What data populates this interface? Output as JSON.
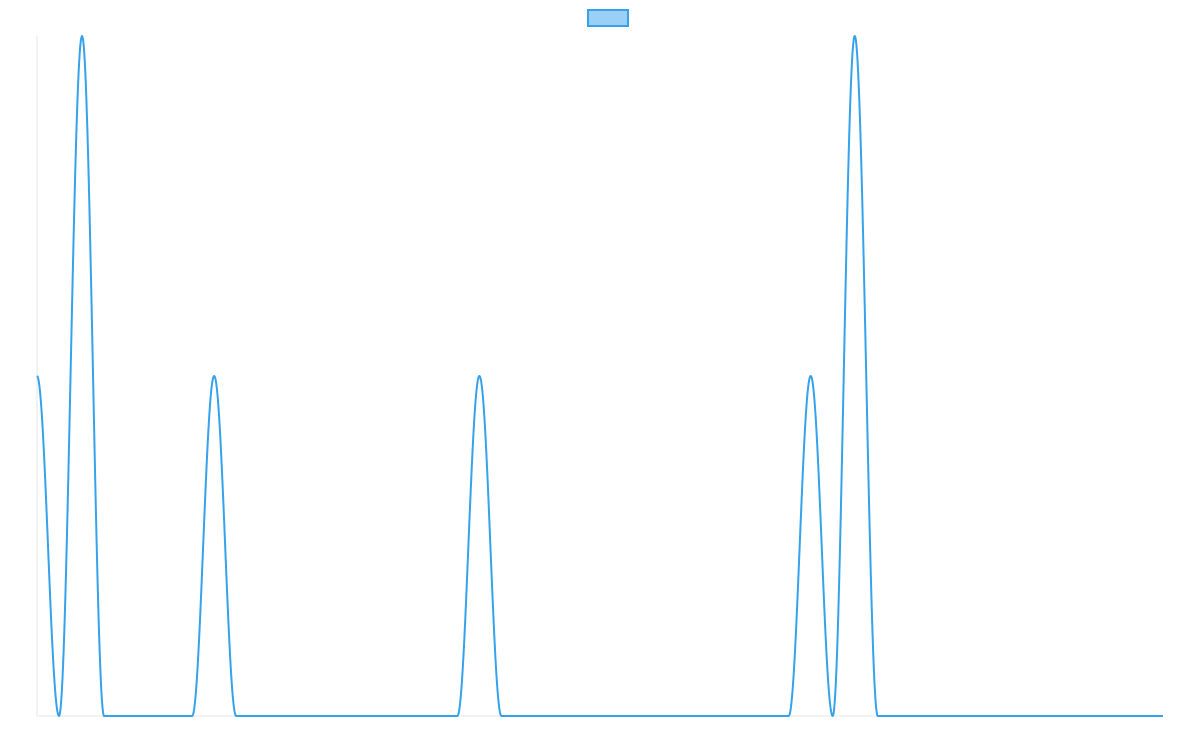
{
  "chart_data": {
    "type": "line",
    "title": "",
    "xlabel": "",
    "ylabel": "",
    "legend": {
      "position": "top",
      "entries": [
        {
          "label": "",
          "fill": "#9ad0f5",
          "stroke": "#36a2eb"
        }
      ]
    },
    "grid": false,
    "axes_visible": false,
    "xlim": [
      0,
      1125
    ],
    "ylim": [
      0,
      2
    ],
    "series": [
      {
        "color": "#36a2eb",
        "width": 2,
        "points": [
          [
            0,
            1.0
          ],
          [
            22,
            0.0
          ],
          [
            45,
            2.0
          ],
          [
            67,
            0.0
          ],
          [
            155,
            0.0
          ],
          [
            177,
            1.0
          ],
          [
            199,
            0.0
          ],
          [
            420,
            0.0
          ],
          [
            442,
            1.0
          ],
          [
            464,
            0.0
          ],
          [
            751,
            0.0
          ],
          [
            773,
            1.0
          ],
          [
            795,
            0.0
          ],
          [
            817,
            2.0
          ],
          [
            840,
            0.0
          ],
          [
            1125,
            0.0
          ]
        ]
      }
    ]
  },
  "colors": {
    "line": "#36a2eb",
    "legend_fill": "#9ad0f5",
    "axis_line": "#e5e5e5",
    "background": "#ffffff"
  }
}
